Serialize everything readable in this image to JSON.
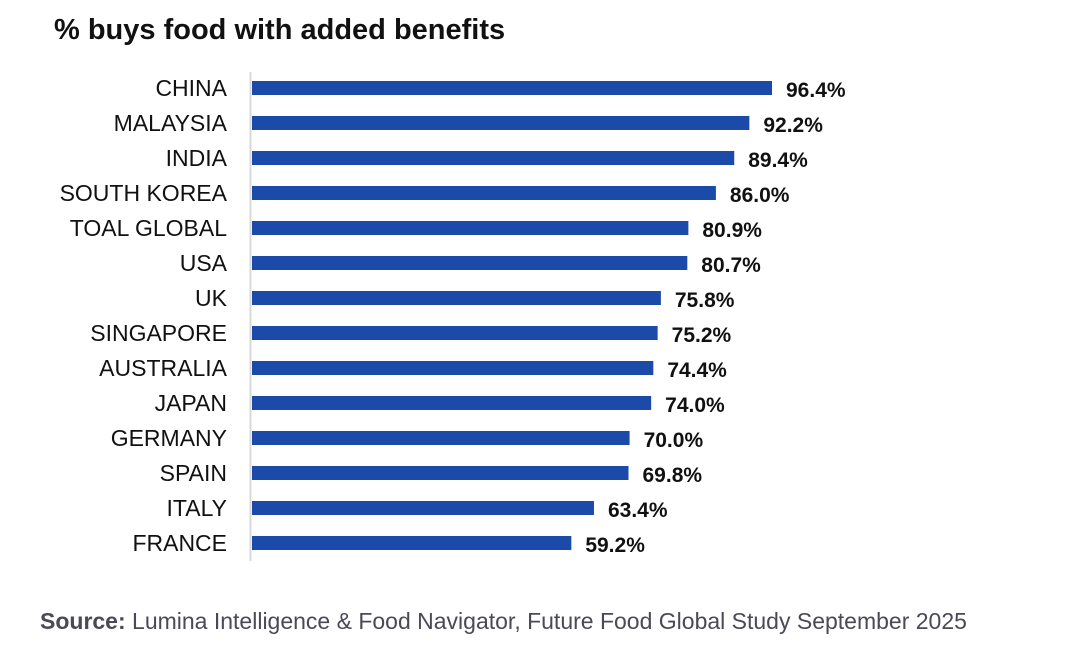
{
  "chart_data": {
    "type": "bar",
    "orientation": "horizontal",
    "title": "% buys food with added benefits",
    "categories": [
      "CHINA",
      "MALAYSIA",
      "INDIA",
      "SOUTH KOREA",
      "TOAL GLOBAL",
      "USA",
      "UK",
      "SINGAPORE",
      "AUSTRALIA",
      "JAPAN",
      "GERMANY",
      "SPAIN",
      "ITALY",
      "FRANCE"
    ],
    "values": [
      96.4,
      92.2,
      89.4,
      86.0,
      80.9,
      80.7,
      75.8,
      75.2,
      74.4,
      74.0,
      70.0,
      69.8,
      63.4,
      59.2
    ],
    "data_labels": [
      "96.4%",
      "92.2%",
      "89.4%",
      "86.0%",
      "80.9%",
      "80.7%",
      "75.8%",
      "75.2%",
      "74.4%",
      "74.0%",
      "70.0%",
      "69.8%",
      "63.4%",
      "59.2%"
    ],
    "xlim": [
      0,
      100
    ],
    "grid": false,
    "legend": "none",
    "bar_color": "#1c4aa8",
    "axis_color": "#d9d9d9"
  },
  "source": {
    "label": "Source:",
    "text": " Lumina Intelligence & Food Navigator, Future Food Global Study September 2025"
  }
}
